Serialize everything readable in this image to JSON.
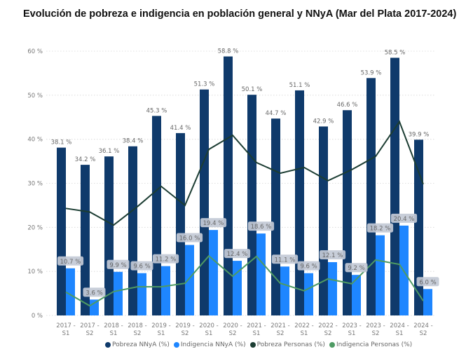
{
  "chart_data": {
    "type": "bar",
    "title": "Evolución de pobreza e indigencia en población general y NNyA (Mar del Plata 2017-2024)",
    "xlabel": "",
    "ylabel": "",
    "ylim": [
      0,
      60
    ],
    "yticks": [
      "0 %",
      "10 %",
      "20 %",
      "30 %",
      "40 %",
      "50 %",
      "60 %"
    ],
    "ytick_values": [
      0,
      10,
      20,
      30,
      40,
      50,
      60
    ],
    "grid": true,
    "legend_position": "bottom",
    "categories": [
      [
        "2017 -",
        "S1"
      ],
      [
        "2017 -",
        "S2"
      ],
      [
        "2018 -",
        "S1"
      ],
      [
        "2018 -",
        "S2"
      ],
      [
        "2019 -",
        "S1"
      ],
      [
        "2019 -",
        "S2"
      ],
      [
        "2020 -",
        "S1"
      ],
      [
        "2020 -",
        "S2"
      ],
      [
        "2021 -",
        "S1"
      ],
      [
        "2021 -",
        "S2"
      ],
      [
        "2022 -",
        "S1"
      ],
      [
        "2022 -",
        "S2"
      ],
      [
        "2023 -",
        "S1"
      ],
      [
        "2023 -",
        "S2"
      ],
      [
        "2024 -",
        "S1"
      ],
      [
        "2024 -",
        "S2"
      ]
    ],
    "series": [
      {
        "name": "Pobreza NNyA (%)",
        "kind": "bar",
        "color": "#0f3a6b",
        "values": [
          38.1,
          34.2,
          36.1,
          38.4,
          45.3,
          41.4,
          51.3,
          58.8,
          50.1,
          44.7,
          51.1,
          42.9,
          46.6,
          53.9,
          58.5,
          39.9
        ],
        "labels": [
          "38.1 %",
          "34.2 %",
          "36.1 %",
          "38.4 %",
          "45.3 %",
          "41.4 %",
          "51.3 %",
          "58.8 %",
          "50.1 %",
          "44.7 %",
          "51.1 %",
          "42.9 %",
          "46.6 %",
          "53.9 %",
          "58.5 %",
          "39.9 %"
        ]
      },
      {
        "name": "Indigencia NNyA (%)",
        "kind": "bar",
        "color": "#1e86ff",
        "values": [
          10.7,
          3.6,
          9.9,
          9.6,
          11.2,
          16.0,
          19.4,
          12.4,
          18.6,
          11.1,
          9.6,
          12.1,
          9.2,
          18.2,
          20.4,
          6.0
        ],
        "labels": [
          "10.7 %",
          "3.6 %",
          "9.9 %",
          "9.6 %",
          "11.2 %",
          "16.0 %",
          "19.4 %",
          "12.4 %",
          "18.6 %",
          "11.1 %",
          "9.6 %",
          "12.1 %",
          "9.2 %",
          "18.2 %",
          "20.4 %",
          "6.0 %"
        ]
      },
      {
        "name": "Pobreza Personas (%)",
        "kind": "line",
        "color": "#1c3d33",
        "values": [
          24.3,
          23.5,
          20.5,
          24.7,
          29.3,
          25.0,
          37.7,
          40.9,
          34.7,
          32.3,
          33.6,
          30.6,
          33.1,
          36.1,
          44.0,
          29.8
        ]
      },
      {
        "name": "Indigencia Personas (%)",
        "kind": "line",
        "color": "#4e9a63",
        "values": [
          5.3,
          2.2,
          5.4,
          6.5,
          6.5,
          7.3,
          13.5,
          8.9,
          13.4,
          7.3,
          5.6,
          8.3,
          7.2,
          12.6,
          11.6,
          3.3
        ]
      }
    ]
  }
}
